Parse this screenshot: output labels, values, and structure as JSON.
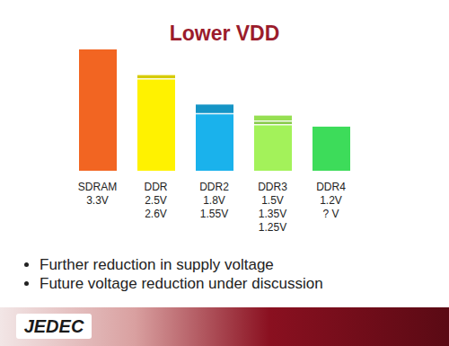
{
  "chart_data": {
    "type": "bar",
    "title": "Lower VDD",
    "categories": [
      "SDRAM",
      "DDR",
      "DDR2",
      "DDR3",
      "DDR4"
    ],
    "values": [
      [
        3.3
      ],
      [
        2.5,
        2.6
      ],
      [
        1.8,
        1.55
      ],
      [
        1.5,
        1.35,
        1.25
      ],
      [
        1.2,
        null
      ]
    ],
    "value_labels": [
      [
        "3.3V"
      ],
      [
        "2.5V",
        "2.6V"
      ],
      [
        "1.8V",
        "1.55V"
      ],
      [
        "1.5V",
        "1.35V",
        "1.25V"
      ],
      [
        "1.2V",
        "? V"
      ]
    ],
    "colors": [
      "#f26522",
      "#fff200",
      "#1ab2ec",
      "#a3f25a",
      "#3ddc5a"
    ],
    "ylim": [
      0,
      3.3
    ],
    "tick_labels": false,
    "annotations": [
      "Further reduction in supply voltage",
      "Future voltage reduction under discussion"
    ]
  },
  "logo": "JEDEC"
}
